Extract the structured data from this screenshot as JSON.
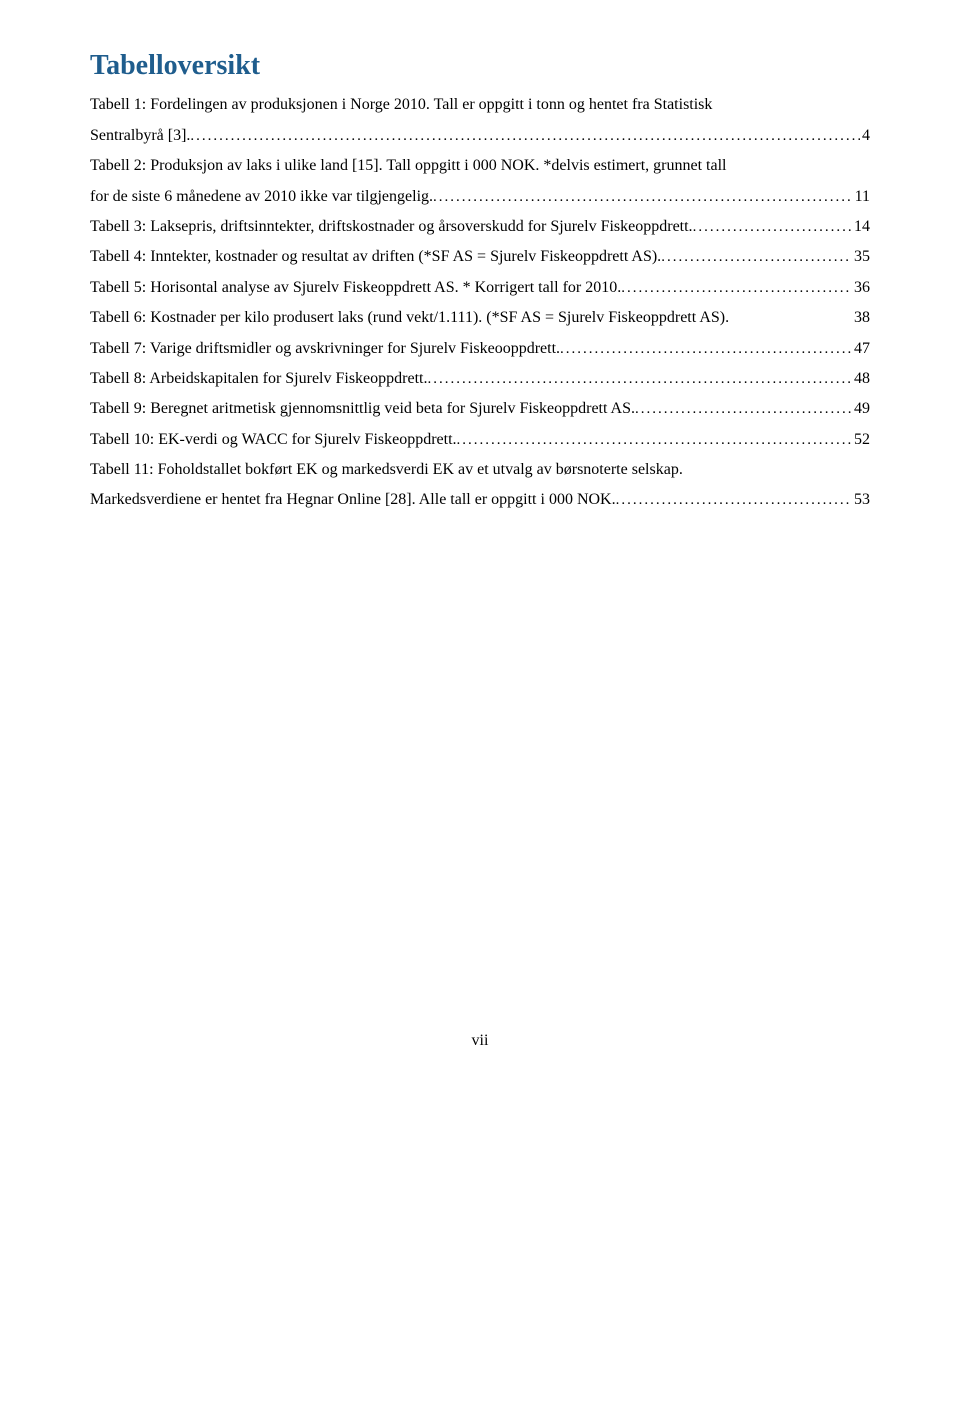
{
  "heading": "Tabelloversikt",
  "heading_color": "#1f5d8d",
  "body_fontsize": 16,
  "heading_fontsize": 28,
  "entries": [
    {
      "pre": "Tabell 1: Fordelingen av produksjonen i Norge 2010. Tall er oppgitt i tonn og hentet fra Statistisk",
      "last": "Sentralbyrå [3].",
      "page": "4",
      "multiline": true
    },
    {
      "pre": "Tabell 2: Produksjon av laks i ulike land [15]. Tall oppgitt i 000 NOK. *delvis estimert, grunnet tall",
      "last": "for de siste 6 månedene av 2010 ikke var tilgjengelig.",
      "page": "11",
      "multiline": true
    },
    {
      "last": "Tabell 3: Laksepris, driftsinntekter, driftskostnader og årsoverskudd for Sjurelv Fiskeoppdrett.",
      "page": "14"
    },
    {
      "last": "Tabell 4: Inntekter, kostnader og resultat av driften (*SF AS = Sjurelv Fiskeoppdrett AS).",
      "page": "35"
    },
    {
      "last": "Tabell 5: Horisontal analyse av Sjurelv Fiskeoppdrett AS. * Korrigert tall for 2010.",
      "page": "36"
    },
    {
      "last": "Tabell 6: Kostnader per kilo produsert laks (rund vekt/1.111). (*SF AS = Sjurelv Fiskeoppdrett AS).",
      "page": "38",
      "nodots": true
    },
    {
      "last": "Tabell 7: Varige driftsmidler og avskrivninger for Sjurelv Fiskeooppdrett.",
      "page": "47"
    },
    {
      "last": "Tabell 8: Arbeidskapitalen for Sjurelv Fiskeoppdrett.",
      "page": "48"
    },
    {
      "last": "Tabell 9: Beregnet aritmetisk gjennomsnittlig veid beta for Sjurelv Fiskeoppdrett AS.",
      "page": "49"
    },
    {
      "last": "Tabell 10: EK-verdi og WACC for Sjurelv Fiskeoppdrett.",
      "page": "52"
    },
    {
      "pre": "Tabell 11: Foholdstallet bokført EK og markedsverdi EK av et utvalg av børsnoterte selskap.",
      "last": "Markedsverdiene er hentet fra Hegnar Online [28]. Alle tall er oppgitt i 000 NOK.",
      "page": "53",
      "multiline": true,
      "pre_nodots": true
    }
  ],
  "footer": "vii"
}
